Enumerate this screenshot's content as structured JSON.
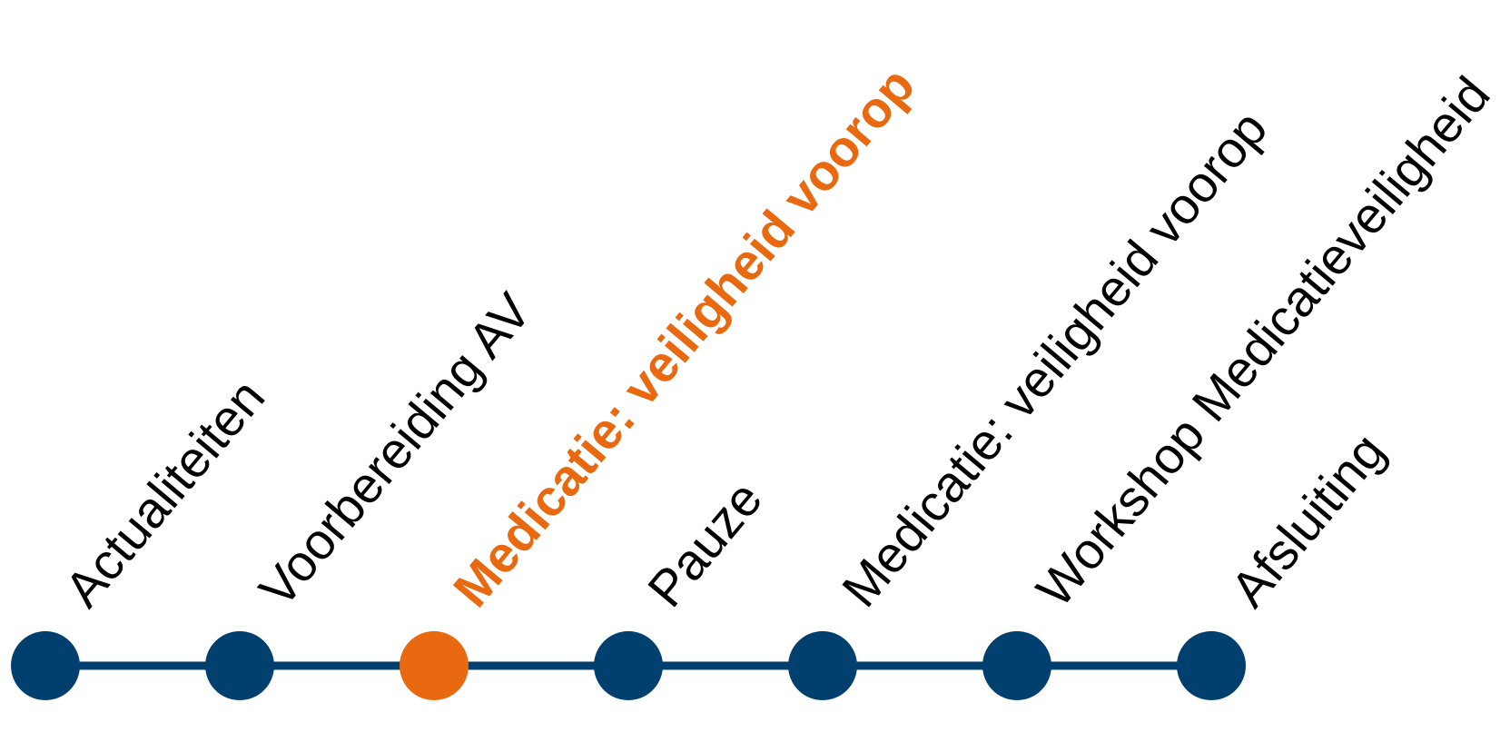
{
  "agenda": {
    "colors": {
      "line": "#003F6E",
      "node": "#003F6E",
      "active": "#E8690F",
      "label": "#000000"
    },
    "items": [
      {
        "label": "Actualiteiten",
        "active": false
      },
      {
        "label": "Voorbereiding AV",
        "active": false
      },
      {
        "label": "Medicatie: veiligheid voorop",
        "active": true
      },
      {
        "label": "Pauze",
        "active": false
      },
      {
        "label": "Medicatie: veiligheid voorop",
        "active": false
      },
      {
        "label": "Workshop Medicatieveiligheid",
        "active": false
      },
      {
        "label": "Afsluiting",
        "active": false
      }
    ]
  }
}
